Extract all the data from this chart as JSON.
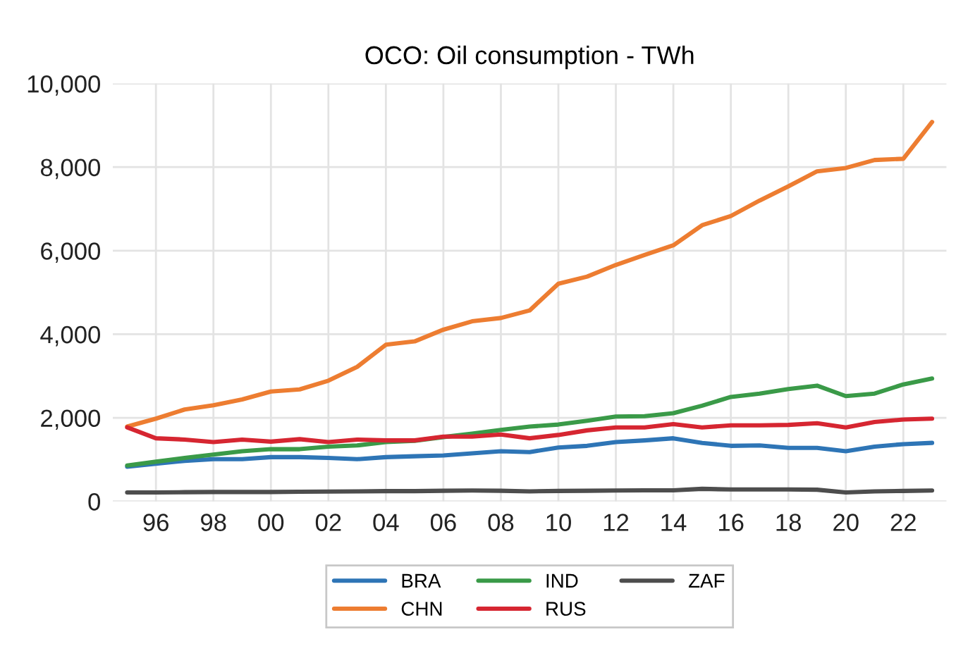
{
  "chart_data": {
    "type": "line",
    "title": "OCO: Oil consumption - TWh",
    "x": [
      1995,
      1996,
      1997,
      1998,
      1999,
      2000,
      2001,
      2002,
      2003,
      2004,
      2005,
      2006,
      2007,
      2008,
      2009,
      2010,
      2011,
      2012,
      2013,
      2014,
      2015,
      2016,
      2017,
      2018,
      2019,
      2020,
      2021,
      2022,
      2023
    ],
    "series": [
      {
        "name": "BRA",
        "color": "#2e75b6",
        "values": [
          830,
          900,
          970,
          1010,
          1010,
          1060,
          1060,
          1040,
          1010,
          1060,
          1080,
          1100,
          1150,
          1200,
          1180,
          1290,
          1330,
          1420,
          1460,
          1510,
          1400,
          1330,
          1340,
          1280,
          1280,
          1200,
          1310,
          1370,
          1400
        ]
      },
      {
        "name": "CHN",
        "color": "#ed7d31",
        "values": [
          1790,
          1980,
          2200,
          2300,
          2440,
          2630,
          2680,
          2890,
          3220,
          3750,
          3830,
          4110,
          4310,
          4390,
          4570,
          5210,
          5380,
          5660,
          5900,
          6130,
          6610,
          6830,
          7200,
          7540,
          7900,
          7980,
          8170,
          8200,
          9080
        ]
      },
      {
        "name": "IND",
        "color": "#3a9a48",
        "values": [
          860,
          950,
          1040,
          1120,
          1200,
          1250,
          1250,
          1310,
          1340,
          1420,
          1450,
          1540,
          1620,
          1710,
          1790,
          1840,
          1930,
          2030,
          2040,
          2110,
          2290,
          2500,
          2580,
          2690,
          2770,
          2520,
          2580,
          2800,
          2940
        ]
      },
      {
        "name": "RUS",
        "color": "#d62631",
        "values": [
          1770,
          1510,
          1480,
          1420,
          1480,
          1430,
          1490,
          1420,
          1480,
          1460,
          1460,
          1550,
          1550,
          1600,
          1510,
          1590,
          1700,
          1770,
          1770,
          1850,
          1770,
          1820,
          1820,
          1830,
          1870,
          1770,
          1900,
          1960,
          1980
        ]
      },
      {
        "name": "ZAF",
        "color": "#4d4d4d",
        "values": [
          215,
          215,
          220,
          225,
          225,
          225,
          230,
          235,
          240,
          245,
          245,
          255,
          260,
          255,
          240,
          250,
          255,
          260,
          265,
          265,
          300,
          285,
          285,
          285,
          280,
          215,
          240,
          250,
          260
        ]
      }
    ],
    "xlim": [
      1994.5,
      2023.5
    ],
    "xticks": [
      {
        "value": 1996,
        "label": "96"
      },
      {
        "value": 1998,
        "label": "98"
      },
      {
        "value": 2000,
        "label": "00"
      },
      {
        "value": 2002,
        "label": "02"
      },
      {
        "value": 2004,
        "label": "04"
      },
      {
        "value": 2006,
        "label": "06"
      },
      {
        "value": 2008,
        "label": "08"
      },
      {
        "value": 2010,
        "label": "10"
      },
      {
        "value": 2012,
        "label": "12"
      },
      {
        "value": 2014,
        "label": "14"
      },
      {
        "value": 2016,
        "label": "16"
      },
      {
        "value": 2018,
        "label": "18"
      },
      {
        "value": 2020,
        "label": "20"
      },
      {
        "value": 2022,
        "label": "22"
      }
    ],
    "ylim": [
      0,
      10000
    ],
    "yticks": [
      {
        "value": 0,
        "label": "0"
      },
      {
        "value": 2000,
        "label": "2,000"
      },
      {
        "value": 4000,
        "label": "4,000"
      },
      {
        "value": 6000,
        "label": "6,000"
      },
      {
        "value": 8000,
        "label": "8,000"
      },
      {
        "value": 10000,
        "label": "10,000"
      }
    ],
    "grid": true,
    "legend": "bottom",
    "line_style": "solid",
    "marker": "none"
  }
}
